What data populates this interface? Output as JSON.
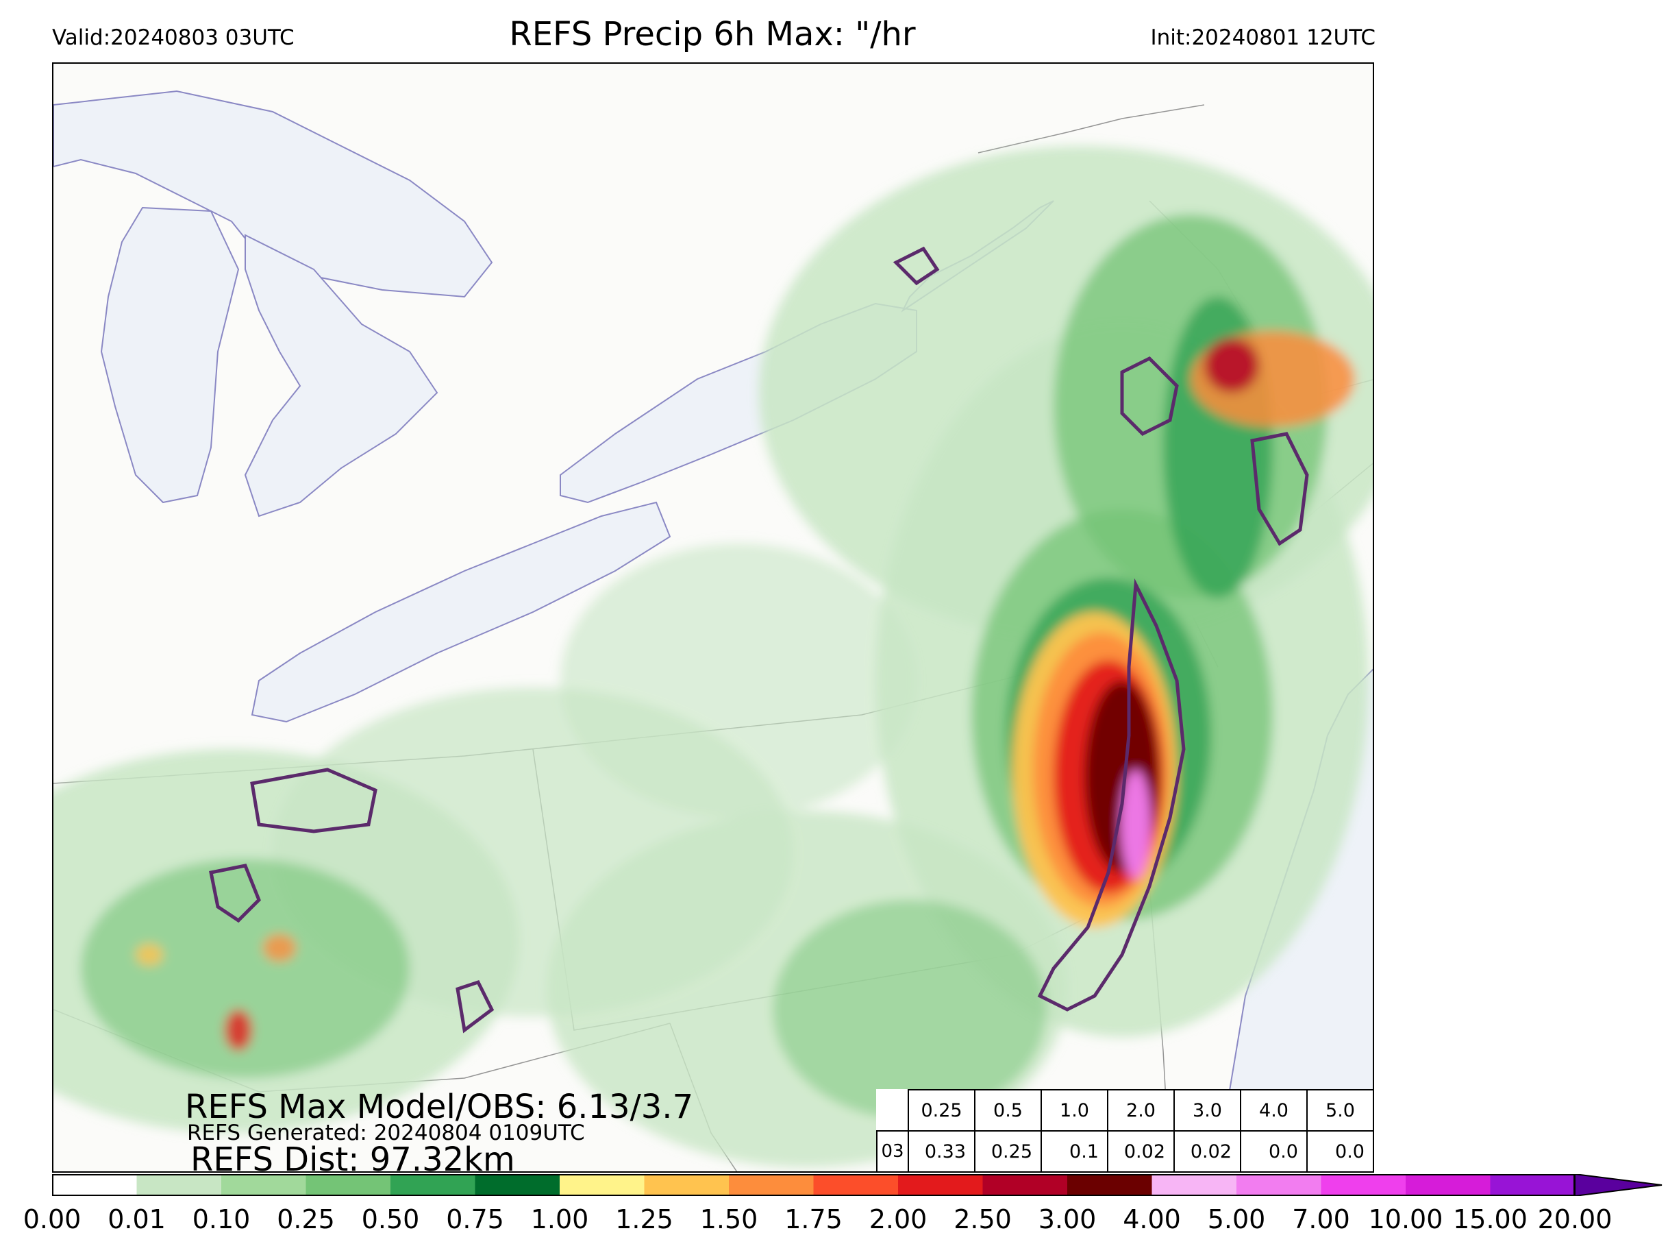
{
  "header": {
    "valid": "Valid:20240803 03UTC",
    "title": "REFS Precip 6h Max: \"/hr",
    "init": "Init:20240801 12UTC"
  },
  "stats": {
    "max_model_obs": "REFS Max Model/OBS: 6.13/3.7",
    "generated": "REFS Generated: 20240804 0109UTC",
    "dist": "REFS Dist: 97.32km"
  },
  "prob_table": {
    "thresholds": [
      "0.25",
      "0.5",
      "1.0",
      "2.0",
      "3.0",
      "4.0",
      "5.0"
    ],
    "hour": "03",
    "values": [
      "0.33",
      "0.25",
      "0.1",
      "0.02",
      "0.02",
      "0.0",
      "0.0"
    ]
  },
  "colorbar": {
    "ticks": [
      "0.00",
      "0.01",
      "0.10",
      "0.25",
      "0.50",
      "0.75",
      "1.00",
      "1.25",
      "1.50",
      "1.75",
      "2.00",
      "2.50",
      "3.00",
      "4.00",
      "5.00",
      "7.00",
      "10.00",
      "15.00",
      "20.00"
    ],
    "colors": [
      "#ffffff",
      "#c8e6c4",
      "#a1d99b",
      "#74c476",
      "#31a354",
      "#006d2c",
      "#fff38a",
      "#ffc34f",
      "#fd8d3c",
      "#fc4e2a",
      "#e31a1c",
      "#b10026",
      "#6b0000",
      "#f7b5f5",
      "#f27df0",
      "#ef3fed",
      "#d61cd9",
      "#9814d6"
    ],
    "extend_color": "#5a009e"
  },
  "map_colors": {
    "water": "#eef2f8",
    "land": "#fbfbf9",
    "obs_contour": "#5b2a6b"
  }
}
